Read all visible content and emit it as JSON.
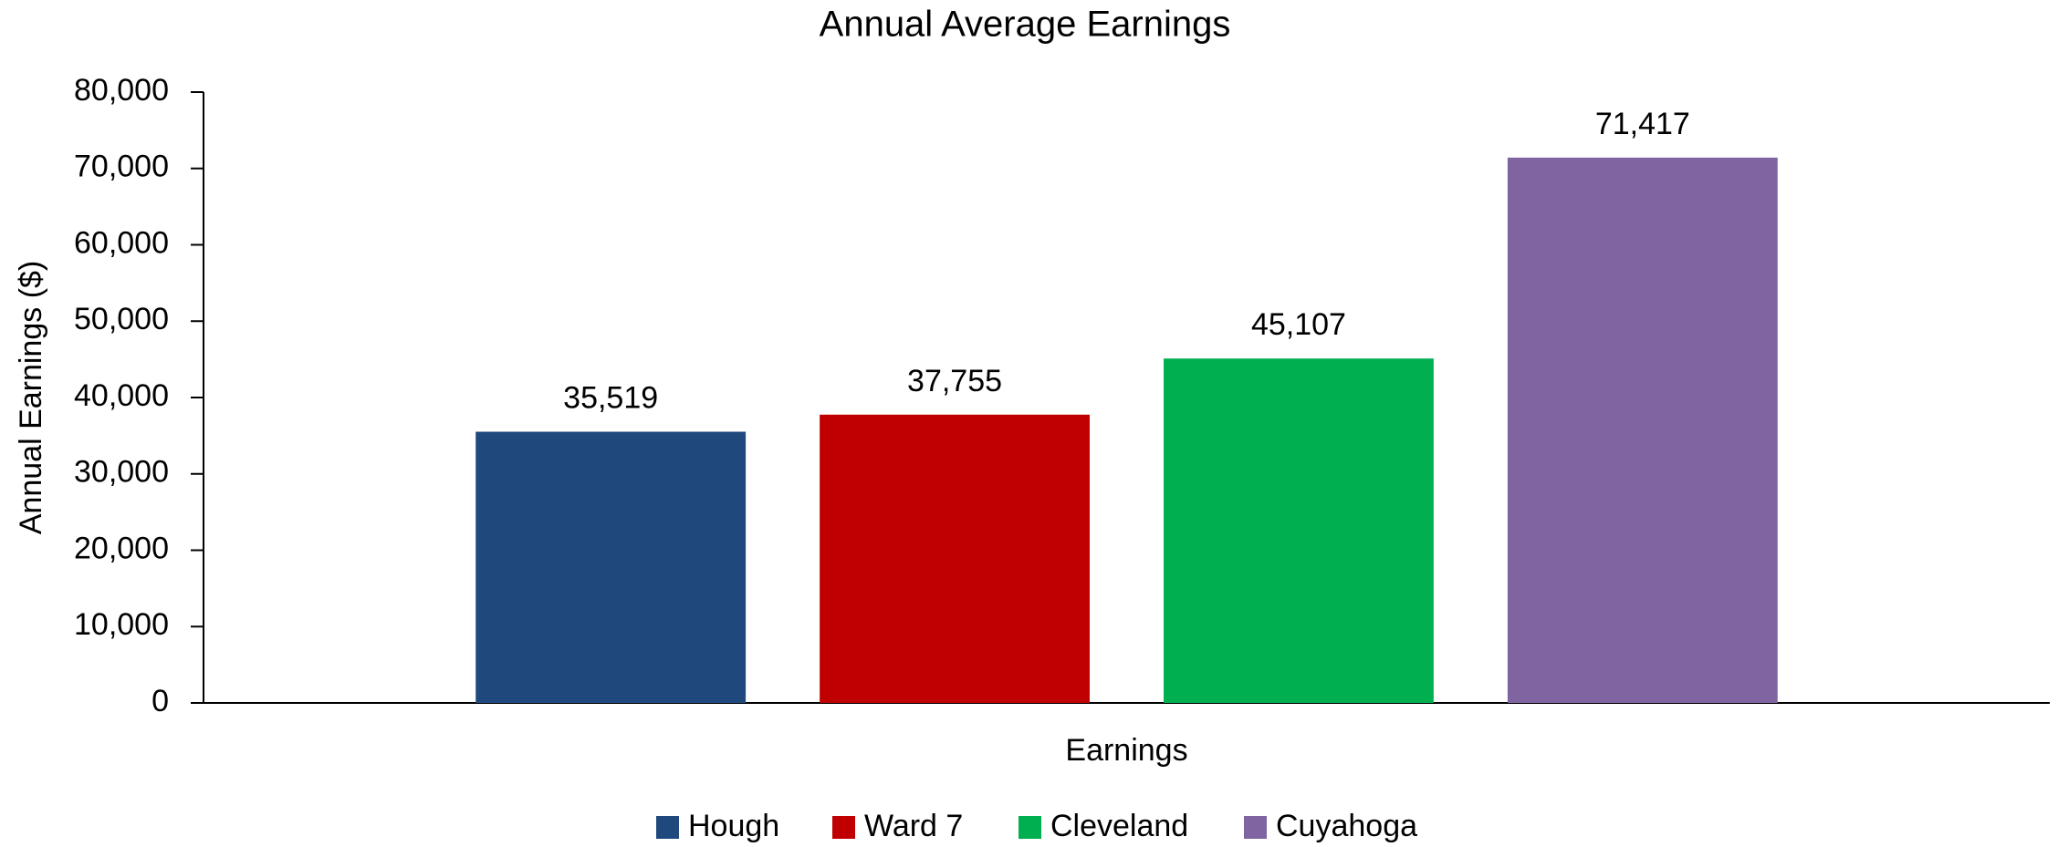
{
  "chart_data": {
    "type": "bar",
    "title": "Annual Average Earnings",
    "y_label": "Annual Earnings ($)",
    "categories": [
      "Earnings"
    ],
    "series": [
      {
        "name": "Hough",
        "color": "#1f497d",
        "values": [
          35519
        ],
        "value_labels": [
          "35,519"
        ]
      },
      {
        "name": "Ward 7",
        "color": "#c00000",
        "values": [
          37755
        ],
        "value_labels": [
          "37,755"
        ]
      },
      {
        "name": "Cleveland",
        "color": "#00b050",
        "values": [
          45107
        ],
        "value_labels": [
          "45,107"
        ]
      },
      {
        "name": "Cuyahoga",
        "color": "#8064a2",
        "values": [
          71417
        ],
        "value_labels": [
          "71,417"
        ]
      }
    ],
    "ylim": [
      0,
      80000
    ],
    "yticks": [
      0,
      {
        "value": 10000,
        "label": "10,000"
      },
      {
        "value": 20000,
        "label": "20,000"
      },
      {
        "value": 30000,
        "label": "30,000"
      },
      {
        "value": 40000,
        "label": "40,000"
      },
      {
        "value": 50000,
        "label": "50,000"
      },
      {
        "value": 60000,
        "label": "60,000"
      },
      {
        "value": 70000,
        "label": "70,000"
      },
      {
        "value": 80000,
        "label": "80,000"
      }
    ],
    "grid": false,
    "legend": "bottom"
  }
}
